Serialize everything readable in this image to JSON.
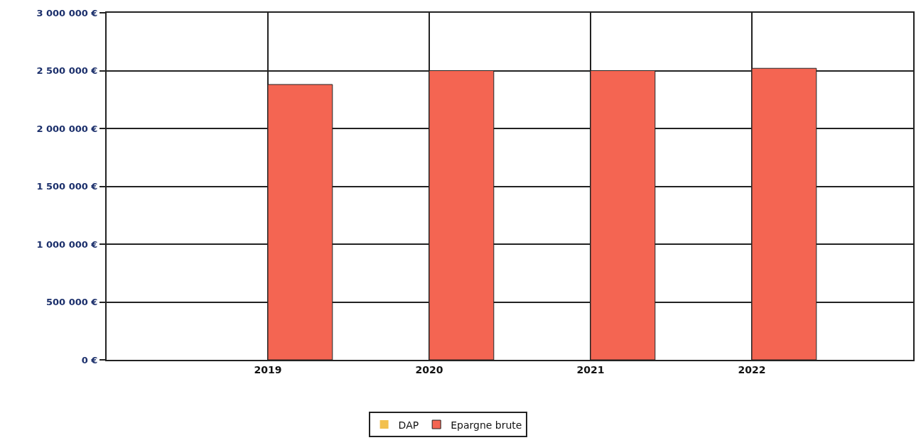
{
  "chart_data": {
    "type": "bar",
    "categories": [
      "2019",
      "2020",
      "2021",
      "2022"
    ],
    "series": [
      {
        "name": "DAP",
        "color": "#f2c04e",
        "values": [
          0,
          0,
          0,
          0
        ]
      },
      {
        "name": "Epargne brute",
        "color": "#f46552",
        "values": [
          2380000,
          2500000,
          2500000,
          2520000
        ]
      }
    ],
    "ylim": [
      0,
      3000000
    ],
    "yticks": [
      {
        "value": 0,
        "label": "0 €"
      },
      {
        "value": 500000,
        "label": "500 000 €"
      },
      {
        "value": 1000000,
        "label": "1 000 000 €"
      },
      {
        "value": 1500000,
        "label": "1 500 000 €"
      },
      {
        "value": 2000000,
        "label": "2 000 000 €"
      },
      {
        "value": 2500000,
        "label": "2 500 000 €"
      },
      {
        "value": 3000000,
        "label": "3 000 000 €"
      }
    ],
    "grid": true,
    "legend": "bottom"
  }
}
